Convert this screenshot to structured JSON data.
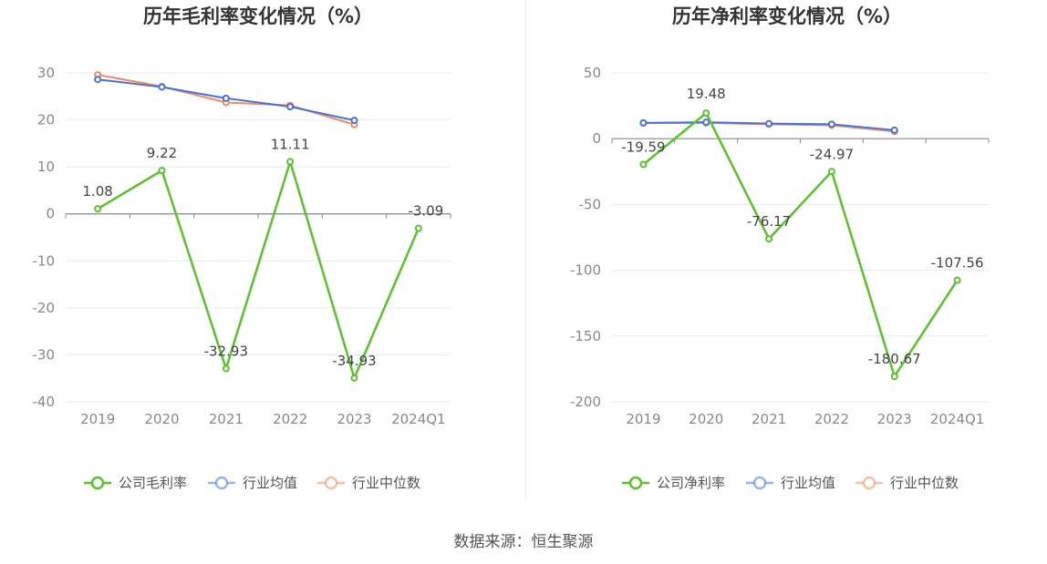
{
  "colors": {
    "company": "#5ac12d",
    "industry_avg": "#4a72d6",
    "industry_median": "#ef8a62"
  },
  "legend_labels": {
    "avg": "行业均值",
    "median": "行业中位数"
  },
  "source": "数据来源：恒生聚源",
  "chart_data": [
    {
      "type": "line",
      "title": "历年毛利率变化情况（%）",
      "categories": [
        "2019",
        "2020",
        "2021",
        "2022",
        "2023",
        "2024Q1"
      ],
      "ylim": [
        -40,
        30
      ],
      "yticks": [
        30,
        20,
        10,
        0,
        -10,
        -20,
        -30,
        -40
      ],
      "series": [
        {
          "name": "公司毛利率",
          "values": [
            1.08,
            9.22,
            -32.93,
            11.11,
            -34.93,
            -3.09
          ],
          "labels": [
            "1.08",
            "9.22",
            "-32.93",
            "11.11",
            "-34.93",
            "-3.09"
          ]
        },
        {
          "name": "行业均值",
          "values": [
            28.6,
            27.0,
            24.6,
            22.8,
            19.9,
            null
          ]
        },
        {
          "name": "行业中位数",
          "values": [
            29.6,
            27.1,
            23.7,
            23.1,
            19.0,
            null
          ]
        }
      ]
    },
    {
      "type": "line",
      "title": "历年净利率变化情况（%）",
      "categories": [
        "2019",
        "2020",
        "2021",
        "2022",
        "2023",
        "2024Q1"
      ],
      "ylim": [
        -200,
        50
      ],
      "yticks": [
        50,
        0,
        -50,
        -100,
        -150,
        -200
      ],
      "series": [
        {
          "name": "公司净利率",
          "values": [
            -19.59,
            19.48,
            -76.17,
            -24.97,
            -180.67,
            -107.56
          ],
          "labels": [
            "-19.59",
            "19.48",
            "-76.17",
            "-24.97",
            "-180.67",
            "-107.56"
          ]
        },
        {
          "name": "行业均值",
          "values": [
            12.0,
            12.5,
            11.5,
            11.0,
            6.5,
            null
          ]
        },
        {
          "name": "行业中位数",
          "values": [
            11.8,
            12.0,
            11.0,
            10.2,
            5.5,
            null
          ]
        }
      ]
    }
  ]
}
